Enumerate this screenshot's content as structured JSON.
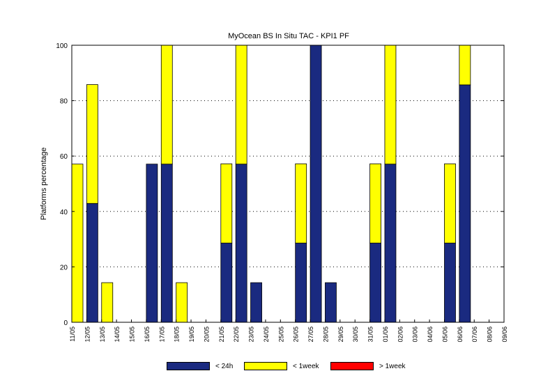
{
  "chart_data": {
    "type": "bar",
    "stacked": true,
    "title": "MyOcean  BS In Situ TAC - KPI1  PF",
    "ylabel": "Platforms percentage",
    "xlabel": "",
    "ylim": [
      0,
      100
    ],
    "yticks": [
      0,
      20,
      40,
      60,
      80,
      100
    ],
    "grid": "horizontal dotted",
    "legend_position": "bottom",
    "categories": [
      "11/05",
      "12/05",
      "13/05",
      "14/05",
      "15/05",
      "16/05",
      "17/05",
      "18/05",
      "19/05",
      "20/05",
      "21/05",
      "22/05",
      "23/05",
      "24/05",
      "25/05",
      "26/05",
      "27/05",
      "28/05",
      "29/05",
      "30/05",
      "31/05",
      "01/06",
      "02/06",
      "03/06",
      "04/06",
      "05/06",
      "06/06",
      "07/06",
      "08/06",
      "09/06"
    ],
    "series": [
      {
        "name": "< 24h",
        "color": "#1a2a80",
        "values": [
          0,
          42.9,
          0,
          0,
          0,
          57.1,
          57.1,
          0,
          0,
          0,
          28.6,
          57.1,
          14.3,
          0,
          0,
          28.6,
          100,
          14.3,
          0,
          0,
          28.6,
          57.1,
          0,
          0,
          0,
          28.6,
          85.7,
          0,
          0,
          0
        ]
      },
      {
        "name": "< 1week",
        "color": "#ffff00",
        "values": [
          57.1,
          42.9,
          14.3,
          0,
          0,
          0,
          42.9,
          14.3,
          0,
          0,
          28.6,
          42.9,
          0,
          0,
          0,
          28.6,
          0,
          0,
          0,
          0,
          28.6,
          42.9,
          0,
          0,
          0,
          28.6,
          14.3,
          0,
          0,
          0
        ]
      },
      {
        "name": "> 1week",
        "color": "#ff0000",
        "values": [
          0,
          0,
          0,
          0,
          0,
          0,
          0,
          0,
          0,
          0,
          0,
          0,
          0,
          0,
          0,
          0,
          0,
          0,
          0,
          0,
          0,
          0,
          0,
          0,
          0,
          0,
          0,
          0,
          0,
          0
        ]
      }
    ]
  }
}
